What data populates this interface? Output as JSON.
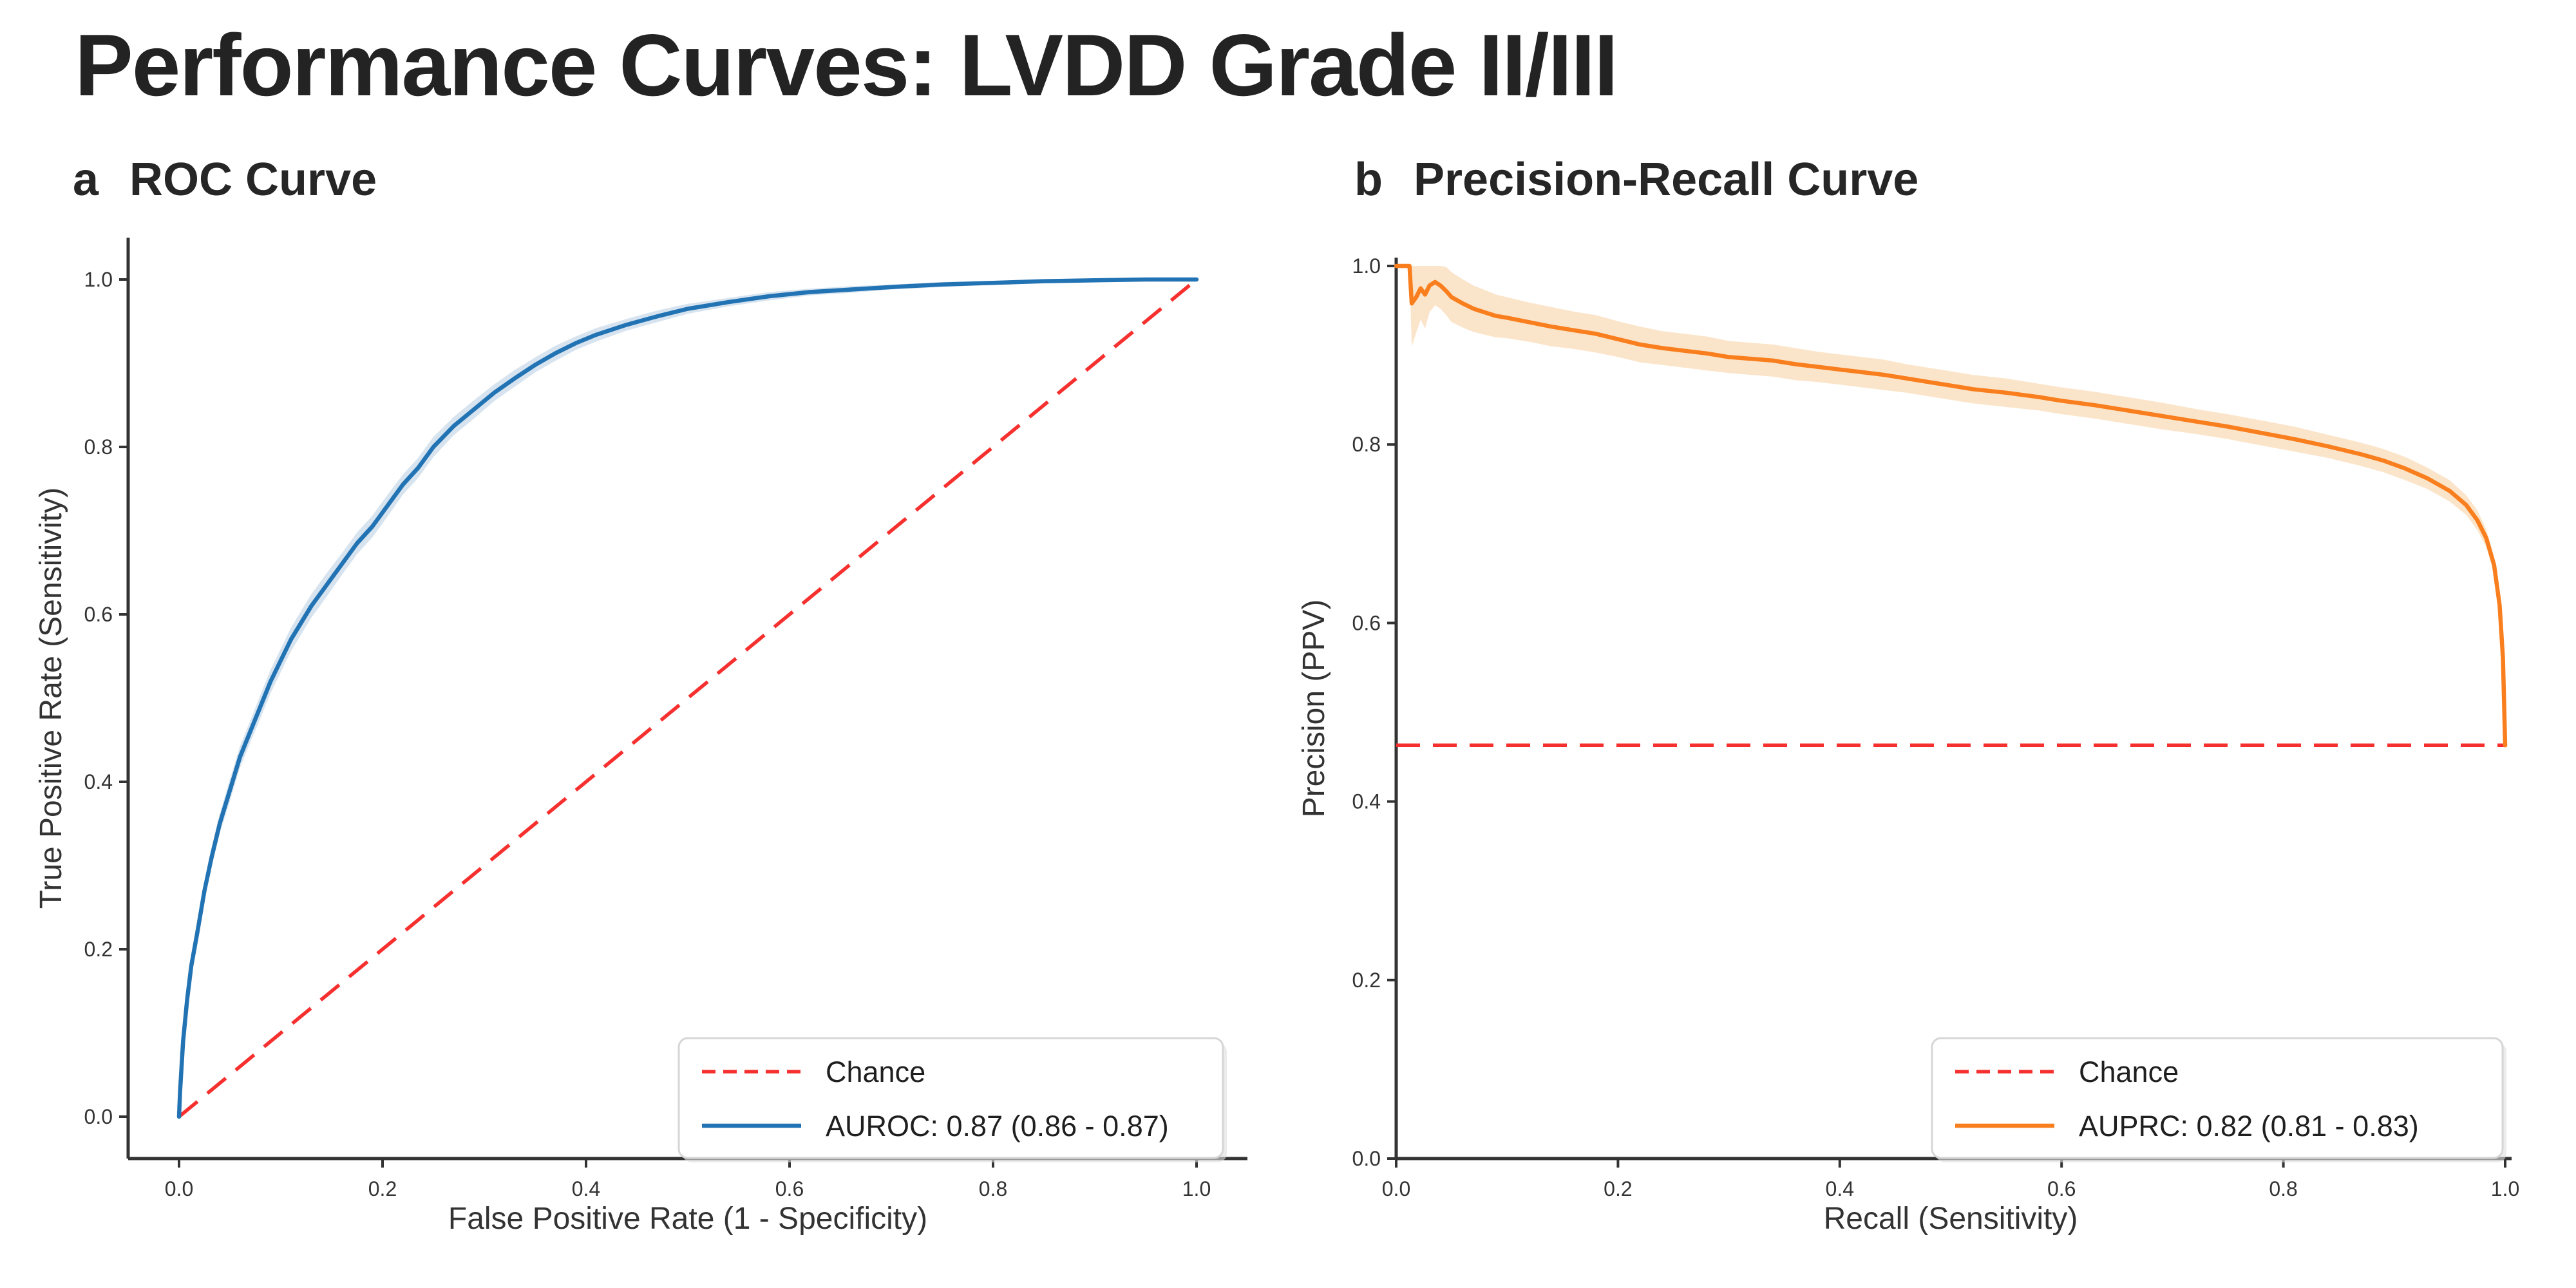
{
  "page": {
    "title": "Performance Curves: LVDD Grade II/III"
  },
  "panels": [
    {
      "letter": "a",
      "title": "ROC Curve"
    },
    {
      "letter": "b",
      "title": "Precision-Recall Curve"
    }
  ],
  "colors": {
    "blue": "#2273b4",
    "blue_band": "#d3e1ed",
    "orange": "#f97e1e",
    "orange_band": "#fbe2c4",
    "red": "#f5302e",
    "axis": "#333333",
    "text": "#262626",
    "legend_border": "#d6d6d6",
    "background": "#ffffff"
  },
  "chart_data": [
    {
      "id": "roc",
      "type": "line",
      "title": "ROC Curve",
      "xlabel": "False Positive Rate (1 - Specificity)",
      "ylabel": "True Positive Rate (Sensitivity)",
      "xlim": [
        -0.05,
        1.05
      ],
      "ylim": [
        -0.05,
        1.05
      ],
      "grid": false,
      "legend_position": "lower right",
      "xtick_labels": [
        "0.0",
        "0.2",
        "0.4",
        "0.6",
        "0.8",
        "1.0"
      ],
      "ytick_labels": [
        "0.0",
        "0.2",
        "0.4",
        "0.6",
        "0.8",
        "1.0"
      ],
      "tick_values": [
        0,
        0.2,
        0.4,
        0.6,
        0.8,
        1.0
      ],
      "chance": {
        "type": "diagonal",
        "from": [
          0,
          0
        ],
        "to": [
          1,
          1
        ]
      },
      "legend": [
        {
          "label": "Chance",
          "style": "dashed",
          "color_key": "red"
        },
        {
          "label": "AUROC: 0.87 (0.86 - 0.87)",
          "style": "solid",
          "color_key": "blue"
        }
      ],
      "auc_text": "0.87 (0.86 - 0.87)",
      "series": {
        "name": "AUROC",
        "x": [
          0,
          0.001,
          0.004,
          0.008,
          0.012,
          0.018,
          0.025,
          0.032,
          0.04,
          0.05,
          0.06,
          0.07,
          0.08,
          0.09,
          0.1,
          0.11,
          0.12,
          0.13,
          0.145,
          0.16,
          0.175,
          0.19,
          0.205,
          0.22,
          0.235,
          0.25,
          0.27,
          0.29,
          0.31,
          0.33,
          0.35,
          0.37,
          0.39,
          0.41,
          0.44,
          0.47,
          0.5,
          0.54,
          0.58,
          0.62,
          0.66,
          0.7,
          0.75,
          0.8,
          0.85,
          0.9,
          0.95,
          1.0
        ],
        "y": [
          0,
          0.03,
          0.09,
          0.14,
          0.18,
          0.22,
          0.27,
          0.31,
          0.35,
          0.39,
          0.43,
          0.46,
          0.49,
          0.52,
          0.545,
          0.57,
          0.59,
          0.61,
          0.635,
          0.66,
          0.685,
          0.705,
          0.73,
          0.755,
          0.775,
          0.8,
          0.825,
          0.845,
          0.865,
          0.882,
          0.898,
          0.912,
          0.924,
          0.934,
          0.946,
          0.956,
          0.965,
          0.973,
          0.98,
          0.985,
          0.988,
          0.991,
          0.994,
          0.996,
          0.998,
          0.999,
          1.0,
          1.0
        ],
        "ci": [
          0,
          0.004,
          0.006,
          0.008,
          0.009,
          0.01,
          0.011,
          0.012,
          0.012,
          0.013,
          0.013,
          0.013,
          0.014,
          0.014,
          0.014,
          0.014,
          0.014,
          0.014,
          0.014,
          0.013,
          0.013,
          0.013,
          0.013,
          0.012,
          0.012,
          0.012,
          0.011,
          0.011,
          0.01,
          0.01,
          0.009,
          0.009,
          0.008,
          0.008,
          0.007,
          0.007,
          0.006,
          0.005,
          0.005,
          0.004,
          0.004,
          0.003,
          0.003,
          0.002,
          0.002,
          0.001,
          0.001,
          0
        ]
      },
      "color_key": "blue",
      "band_color_key": "blue_band"
    },
    {
      "id": "pr",
      "type": "line",
      "title": "Precision-Recall Curve",
      "xlabel": "Recall (Sensitivity)",
      "ylabel": "Precision (PPV)",
      "xlim": [
        0,
        1.0
      ],
      "ylim": [
        0,
        1.01
      ],
      "grid": false,
      "legend_position": "lower right",
      "xtick_labels": [
        "0.0",
        "0.2",
        "0.4",
        "0.6",
        "0.8",
        "1.0"
      ],
      "ytick_labels": [
        "0.0",
        "0.2",
        "0.4",
        "0.6",
        "0.8",
        "1.0"
      ],
      "tick_values": [
        0,
        0.2,
        0.4,
        0.6,
        0.8,
        1.0
      ],
      "chance": {
        "type": "horizontal",
        "value": 0.463
      },
      "legend": [
        {
          "label": "Chance",
          "style": "dashed",
          "color_key": "red"
        },
        {
          "label": "AUPRC: 0.82 (0.81 - 0.83)",
          "style": "solid",
          "color_key": "orange"
        }
      ],
      "auc_text": "0.82 (0.81 - 0.83)",
      "series": {
        "name": "AUPRC",
        "x": [
          0,
          0.012,
          0.014,
          0.018,
          0.022,
          0.026,
          0.03,
          0.035,
          0.04,
          0.045,
          0.05,
          0.06,
          0.07,
          0.08,
          0.09,
          0.1,
          0.12,
          0.14,
          0.16,
          0.18,
          0.2,
          0.22,
          0.24,
          0.26,
          0.28,
          0.3,
          0.32,
          0.34,
          0.36,
          0.38,
          0.4,
          0.42,
          0.44,
          0.46,
          0.48,
          0.5,
          0.52,
          0.55,
          0.58,
          0.6,
          0.63,
          0.66,
          0.69,
          0.72,
          0.75,
          0.78,
          0.81,
          0.84,
          0.87,
          0.89,
          0.91,
          0.93,
          0.95,
          0.965,
          0.975,
          0.983,
          0.99,
          0.995,
          0.998,
          1.0
        ],
        "y": [
          1.0,
          1.0,
          0.958,
          0.965,
          0.975,
          0.968,
          0.978,
          0.982,
          0.978,
          0.972,
          0.965,
          0.958,
          0.952,
          0.948,
          0.944,
          0.942,
          0.937,
          0.932,
          0.928,
          0.924,
          0.918,
          0.912,
          0.908,
          0.905,
          0.902,
          0.898,
          0.896,
          0.894,
          0.89,
          0.887,
          0.884,
          0.881,
          0.878,
          0.874,
          0.87,
          0.866,
          0.862,
          0.858,
          0.853,
          0.849,
          0.844,
          0.838,
          0.832,
          0.826,
          0.82,
          0.813,
          0.806,
          0.798,
          0.789,
          0.782,
          0.773,
          0.762,
          0.748,
          0.732,
          0.715,
          0.695,
          0.665,
          0.62,
          0.56,
          0.463
        ],
        "ci": [
          0,
          0.002,
          0.048,
          0.04,
          0.035,
          0.038,
          0.03,
          0.026,
          0.026,
          0.027,
          0.028,
          0.027,
          0.026,
          0.025,
          0.024,
          0.023,
          0.022,
          0.022,
          0.021,
          0.021,
          0.02,
          0.02,
          0.019,
          0.019,
          0.019,
          0.018,
          0.018,
          0.018,
          0.018,
          0.017,
          0.017,
          0.017,
          0.017,
          0.016,
          0.016,
          0.016,
          0.016,
          0.016,
          0.015,
          0.015,
          0.015,
          0.015,
          0.015,
          0.014,
          0.014,
          0.014,
          0.014,
          0.013,
          0.013,
          0.013,
          0.013,
          0.012,
          0.012,
          0.011,
          0.011,
          0.01,
          0.009,
          0.008,
          0.006,
          0
        ]
      },
      "color_key": "orange",
      "band_color_key": "orange_band"
    }
  ]
}
